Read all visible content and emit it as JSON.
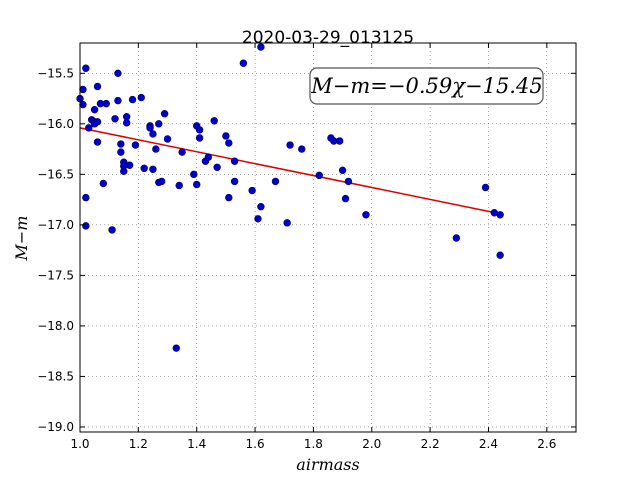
{
  "chart_data": {
    "type": "scatter",
    "title": "2020-03-29_013125",
    "xlabel": "airmass",
    "ylabel": "M−m",
    "xlim": [
      1.0,
      2.7
    ],
    "ylim": [
      -19.05,
      -15.2
    ],
    "x_ticks": [
      1.0,
      1.2,
      1.4,
      1.6,
      1.8,
      2.0,
      2.2,
      2.4,
      2.6
    ],
    "x_tick_labels": [
      "1.0",
      "1.2",
      "1.4",
      "1.6",
      "1.8",
      "2.0",
      "2.2",
      "2.4",
      "2.6"
    ],
    "y_ticks": [
      -15.5,
      -16.0,
      -16.5,
      -17.0,
      -17.5,
      -18.0,
      -18.5,
      -19.0
    ],
    "y_tick_labels": [
      "−15.5",
      "−16.0",
      "−16.5",
      "−17.0",
      "−17.5",
      "−18.0",
      "−18.5",
      "−19.0"
    ],
    "grid": true,
    "annotation": "M−m=−0.59χ−15.45",
    "annotation_position": "top-right",
    "fit": {
      "slope": -0.59,
      "intercept": -15.45,
      "x_range": [
        1.0,
        2.44
      ],
      "color": "#dd0000"
    },
    "point_color": "#0000cc",
    "points": [
      [
        1.0,
        -15.75
      ],
      [
        1.01,
        -15.81
      ],
      [
        1.01,
        -15.66
      ],
      [
        1.02,
        -16.73
      ],
      [
        1.02,
        -17.01
      ],
      [
        1.02,
        -15.45
      ],
      [
        1.03,
        -16.04
      ],
      [
        1.04,
        -15.96
      ],
      [
        1.05,
        -15.86
      ],
      [
        1.05,
        -15.98
      ],
      [
        1.05,
        -16.0
      ],
      [
        1.06,
        -15.98
      ],
      [
        1.06,
        -16.18
      ],
      [
        1.06,
        -15.63
      ],
      [
        1.07,
        -15.8
      ],
      [
        1.08,
        -16.59
      ],
      [
        1.09,
        -15.8
      ],
      [
        1.11,
        -17.05
      ],
      [
        1.12,
        -15.95
      ],
      [
        1.13,
        -15.5
      ],
      [
        1.13,
        -15.77
      ],
      [
        1.14,
        -16.2
      ],
      [
        1.14,
        -16.28
      ],
      [
        1.15,
        -16.38
      ],
      [
        1.15,
        -16.42
      ],
      [
        1.15,
        -16.47
      ],
      [
        1.16,
        -15.93
      ],
      [
        1.16,
        -15.99
      ],
      [
        1.17,
        -16.41
      ],
      [
        1.18,
        -15.76
      ],
      [
        1.19,
        -16.21
      ],
      [
        1.21,
        -15.74
      ],
      [
        1.22,
        -16.44
      ],
      [
        1.24,
        -16.02
      ],
      [
        1.24,
        -16.04
      ],
      [
        1.25,
        -16.1
      ],
      [
        1.25,
        -16.45
      ],
      [
        1.26,
        -16.25
      ],
      [
        1.27,
        -16.0
      ],
      [
        1.27,
        -16.58
      ],
      [
        1.28,
        -16.57
      ],
      [
        1.29,
        -15.9
      ],
      [
        1.3,
        -16.15
      ],
      [
        1.33,
        -18.22
      ],
      [
        1.34,
        -16.61
      ],
      [
        1.35,
        -16.28
      ],
      [
        1.39,
        -16.5
      ],
      [
        1.4,
        -16.02
      ],
      [
        1.4,
        -16.6
      ],
      [
        1.41,
        -16.06
      ],
      [
        1.41,
        -16.14
      ],
      [
        1.43,
        -16.37
      ],
      [
        1.44,
        -16.33
      ],
      [
        1.46,
        -15.97
      ],
      [
        1.47,
        -16.43
      ],
      [
        1.5,
        -16.12
      ],
      [
        1.51,
        -16.19
      ],
      [
        1.51,
        -16.73
      ],
      [
        1.53,
        -16.57
      ],
      [
        1.53,
        -16.37
      ],
      [
        1.56,
        -15.4
      ],
      [
        1.59,
        -16.66
      ],
      [
        1.61,
        -16.94
      ],
      [
        1.62,
        -15.24
      ],
      [
        1.62,
        -16.82
      ],
      [
        1.67,
        -16.57
      ],
      [
        1.71,
        -16.98
      ],
      [
        1.72,
        -16.21
      ],
      [
        1.76,
        -16.25
      ],
      [
        1.82,
        -16.51
      ],
      [
        1.86,
        -16.14
      ],
      [
        1.87,
        -16.17
      ],
      [
        1.89,
        -16.17
      ],
      [
        1.9,
        -16.46
      ],
      [
        1.91,
        -16.74
      ],
      [
        1.92,
        -16.57
      ],
      [
        1.98,
        -16.9
      ],
      [
        2.29,
        -17.13
      ],
      [
        2.39,
        -16.63
      ],
      [
        2.42,
        -16.88
      ],
      [
        2.44,
        -16.9
      ],
      [
        2.44,
        -17.3
      ]
    ]
  }
}
